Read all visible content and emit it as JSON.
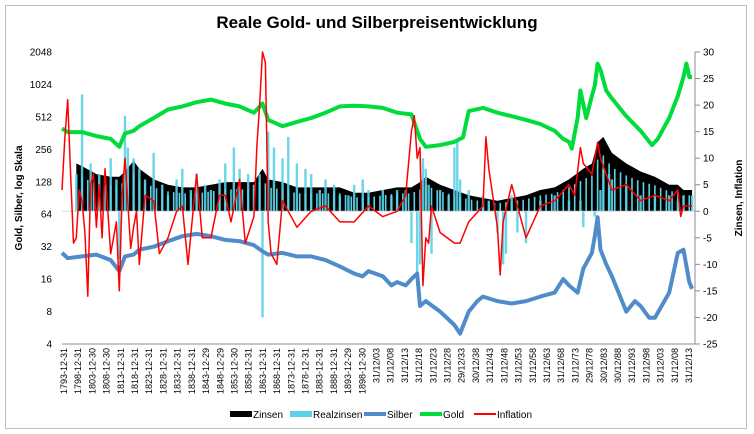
{
  "chart_data": {
    "type": "combo",
    "title": "Reale Gold- und Silberpreisentwicklung",
    "y_left_label": "Gold, Silber, log Skala",
    "y_right_label": "Zinsen, Inflation",
    "y_left_scale": "log2",
    "y_left_ticks": [
      "4",
      "8",
      "16",
      "32",
      "64",
      "128",
      "256",
      "512",
      "1024",
      "2048"
    ],
    "y_left_range": [
      4,
      2048
    ],
    "y_right_ticks": [
      "-25",
      "-20",
      "-15",
      "-10",
      "-5",
      "0",
      "5",
      "10",
      "15",
      "20",
      "25",
      "30"
    ],
    "y_right_range": [
      -25,
      30
    ],
    "x_range": [
      1793,
      2014
    ],
    "x_tick_labels": [
      "1793-12-31",
      "1798-12-31",
      "1803-12-30",
      "1808-12-30",
      "1813-12-31",
      "1818-12-31",
      "1823-12-31",
      "1828-12-31",
      "1833-12-31",
      "1838-12-31",
      "1843-12-29",
      "1848-12-29",
      "1853-12-30",
      "1858-12-31",
      "1863-12-31",
      "1868-12-31",
      "1873-12-31",
      "1878-12-31",
      "1883-12-31",
      "1888-12-31",
      "1893-12-29",
      "1898-12-30",
      "31/12/03",
      "31/12/08",
      "31/12/13",
      "31/12/18",
      "31/12/23",
      "31/12/28",
      "29/12/33",
      "30/12/38",
      "31/12/43",
      "31/12/48",
      "31/12/53",
      "31/12/58",
      "31/12/63",
      "31/12/68",
      "31/12/73",
      "29/12/78",
      "30/12/83",
      "30/12/88",
      "31/12/93",
      "31/12/98",
      "31/12/03",
      "31/12/08",
      "31/12/13"
    ],
    "legend": [
      "Zinsen",
      "Realzinsen",
      "Silber",
      "Gold",
      "Inflation"
    ],
    "legend_position": "bottom",
    "series": [
      {
        "name": "Zinsen",
        "type": "area",
        "axis": "right",
        "color": "#000000",
        "x": [
          1798,
          1800,
          1805,
          1810,
          1813,
          1815,
          1818,
          1820,
          1825,
          1830,
          1835,
          1840,
          1845,
          1850,
          1855,
          1860,
          1863,
          1865,
          1870,
          1875,
          1880,
          1885,
          1890,
          1895,
          1900,
          1905,
          1910,
          1915,
          1918,
          1920,
          1925,
          1930,
          1935,
          1940,
          1945,
          1950,
          1955,
          1960,
          1965,
          1970,
          1975,
          1978,
          1980,
          1982,
          1985,
          1990,
          1995,
          2000,
          2005,
          2008,
          2010,
          2013
        ],
        "y": [
          9,
          8.5,
          7,
          6.5,
          6.5,
          7.5,
          9.5,
          8,
          6,
          5,
          4.5,
          4.5,
          5,
          5.5,
          5.5,
          5.5,
          8,
          6,
          5.5,
          4.5,
          4.5,
          4.5,
          4.5,
          3.5,
          3.5,
          4,
          4.5,
          4.5,
          5.5,
          6.5,
          5,
          4,
          3,
          2.5,
          2,
          2.5,
          3,
          4,
          4.5,
          6,
          8,
          9,
          13,
          14,
          11,
          9,
          7.5,
          6.5,
          5,
          5,
          4,
          4
        ]
      },
      {
        "name": "Realzinsen",
        "type": "bar",
        "axis": "right",
        "color": "#5bd2e6",
        "x": [
          1798,
          1800,
          1803,
          1806,
          1810,
          1812,
          1813,
          1815,
          1816,
          1818,
          1820,
          1822,
          1825,
          1828,
          1830,
          1833,
          1835,
          1838,
          1840,
          1843,
          1845,
          1848,
          1850,
          1853,
          1855,
          1858,
          1860,
          1862,
          1863,
          1865,
          1867,
          1870,
          1872,
          1875,
          1878,
          1880,
          1883,
          1885,
          1888,
          1890,
          1893,
          1895,
          1898,
          1900,
          1905,
          1908,
          1910,
          1913,
          1915,
          1917,
          1918,
          1919,
          1920,
          1921,
          1922,
          1925,
          1928,
          1930,
          1931,
          1932,
          1935,
          1940,
          1942,
          1945,
          1947,
          1948,
          1950,
          1952,
          1955,
          1960,
          1965,
          1970,
          1974,
          1975,
          1979,
          1980,
          1981,
          1982,
          1984,
          1985,
          1990,
          1995,
          2000,
          2005,
          2008,
          2010,
          2013
        ],
        "y": [
          7,
          22,
          9,
          7,
          10,
          6,
          -9,
          18,
          12,
          10,
          8,
          6,
          11,
          5,
          3,
          6,
          8,
          4,
          7,
          5,
          4,
          6,
          9,
          12,
          8,
          7,
          5,
          7,
          -20,
          15,
          12,
          10,
          14,
          9,
          8,
          7,
          4,
          6,
          5,
          3,
          3,
          5,
          6,
          4,
          4,
          3,
          4,
          4,
          -6,
          -14,
          -10,
          10,
          8,
          5,
          -8,
          4,
          3,
          12,
          13,
          6,
          4,
          3,
          2,
          -4,
          -10,
          -8,
          3,
          -4,
          -6,
          2,
          3,
          2,
          2,
          -3,
          -1,
          0,
          4,
          8,
          7,
          6,
          5,
          3,
          3,
          3,
          2,
          3,
          3
        ]
      },
      {
        "name": "Silber",
        "type": "line",
        "axis": "left",
        "color": "#4f8cc9",
        "x": [
          1793,
          1795,
          1800,
          1805,
          1810,
          1813,
          1815,
          1818,
          1820,
          1825,
          1830,
          1835,
          1840,
          1845,
          1850,
          1855,
          1860,
          1863,
          1865,
          1870,
          1875,
          1880,
          1885,
          1890,
          1895,
          1898,
          1900,
          1905,
          1908,
          1910,
          1913,
          1915,
          1917,
          1918,
          1920,
          1925,
          1930,
          1932,
          1935,
          1938,
          1940,
          1945,
          1950,
          1955,
          1960,
          1965,
          1968,
          1970,
          1973,
          1975,
          1978,
          1979,
          1980,
          1981,
          1983,
          1985,
          1990,
          1993,
          1995,
          1998,
          2000,
          2005,
          2008,
          2010,
          2012,
          2013
        ],
        "y": [
          28,
          25,
          26,
          27,
          24,
          19,
          26,
          27,
          30,
          32,
          36,
          40,
          42,
          40,
          37,
          36,
          33,
          29,
          27,
          28,
          26,
          26,
          24,
          21,
          18,
          17,
          19,
          17,
          14,
          15,
          14,
          16,
          18,
          9,
          10,
          8,
          6,
          5,
          8,
          10,
          11,
          10,
          9.5,
          10,
          11,
          12,
          16,
          14,
          12,
          20,
          28,
          40,
          60,
          30,
          22,
          17,
          8,
          10,
          9,
          7,
          7,
          12,
          28,
          30,
          15,
          13
        ]
      },
      {
        "name": "Gold",
        "type": "line",
        "axis": "left",
        "color": "#00dc3c",
        "x": [
          1793,
          1795,
          1800,
          1805,
          1810,
          1813,
          1815,
          1818,
          1820,
          1825,
          1830,
          1835,
          1840,
          1845,
          1850,
          1855,
          1860,
          1863,
          1865,
          1870,
          1875,
          1880,
          1885,
          1890,
          1895,
          1900,
          1905,
          1910,
          1915,
          1918,
          1920,
          1925,
          1930,
          1933,
          1935,
          1940,
          1945,
          1950,
          1955,
          1960,
          1965,
          1968,
          1970,
          1971,
          1973,
          1974,
          1976,
          1978,
          1979,
          1980,
          1981,
          1983,
          1985,
          1990,
          1995,
          1999,
          2001,
          2005,
          2008,
          2010,
          2011,
          2012,
          2013
        ],
        "y": [
          400,
          370,
          370,
          340,
          320,
          270,
          360,
          380,
          420,
          500,
          600,
          640,
          700,
          740,
          680,
          640,
          560,
          680,
          480,
          420,
          460,
          500,
          560,
          640,
          650,
          640,
          620,
          560,
          540,
          320,
          270,
          280,
          300,
          330,
          580,
          620,
          560,
          520,
          480,
          440,
          380,
          320,
          300,
          260,
          500,
          900,
          500,
          800,
          1000,
          1600,
          1400,
          900,
          760,
          520,
          380,
          280,
          320,
          500,
          800,
          1200,
          1600,
          1200,
          1200
        ]
      },
      {
        "name": "Inflation",
        "type": "line",
        "axis": "right",
        "color": "#ff0000",
        "x": [
          1793,
          1794,
          1795,
          1796,
          1797,
          1798,
          1799,
          1800,
          1801,
          1802,
          1803,
          1804,
          1805,
          1806,
          1807,
          1808,
          1810,
          1812,
          1813,
          1814,
          1815,
          1817,
          1818,
          1819,
          1820,
          1822,
          1825,
          1827,
          1830,
          1833,
          1835,
          1837,
          1840,
          1842,
          1845,
          1848,
          1850,
          1852,
          1855,
          1857,
          1860,
          1861,
          1862,
          1863,
          1864,
          1865,
          1866,
          1868,
          1870,
          1875,
          1880,
          1885,
          1890,
          1895,
          1900,
          1905,
          1910,
          1913,
          1915,
          1916,
          1917,
          1918,
          1919,
          1920,
          1921,
          1922,
          1925,
          1930,
          1932,
          1935,
          1940,
          1941,
          1942,
          1945,
          1946,
          1947,
          1950,
          1955,
          1960,
          1965,
          1970,
          1972,
          1974,
          1975,
          1978,
          1980,
          1981,
          1985,
          1990,
          1995,
          2000,
          2005,
          2008,
          2009,
          2010,
          2013
        ],
        "y": [
          4,
          14,
          21,
          7,
          -6,
          -5,
          4,
          2,
          -4,
          -16,
          5,
          7,
          -3,
          5,
          -5,
          8,
          -8,
          -2,
          -15,
          3,
          10,
          -7,
          -3,
          0,
          -10,
          3,
          2,
          -8,
          -5,
          0,
          1,
          -10,
          7,
          -5,
          -5,
          3,
          3,
          -2,
          6,
          -6,
          -1,
          12,
          20,
          30,
          28,
          -2,
          -8,
          -10,
          2,
          -3,
          0,
          1,
          -2,
          -2,
          1,
          -1,
          0,
          3,
          15,
          18,
          10,
          12,
          -14,
          -5,
          -6,
          1,
          -4,
          -6,
          -6,
          -2,
          1,
          14,
          8,
          -3,
          -12,
          -2,
          5,
          -5,
          1,
          2,
          5,
          3,
          12,
          9,
          7,
          13,
          10,
          4,
          5,
          2,
          3,
          2,
          4,
          -1,
          1,
          1
        ]
      }
    ]
  }
}
